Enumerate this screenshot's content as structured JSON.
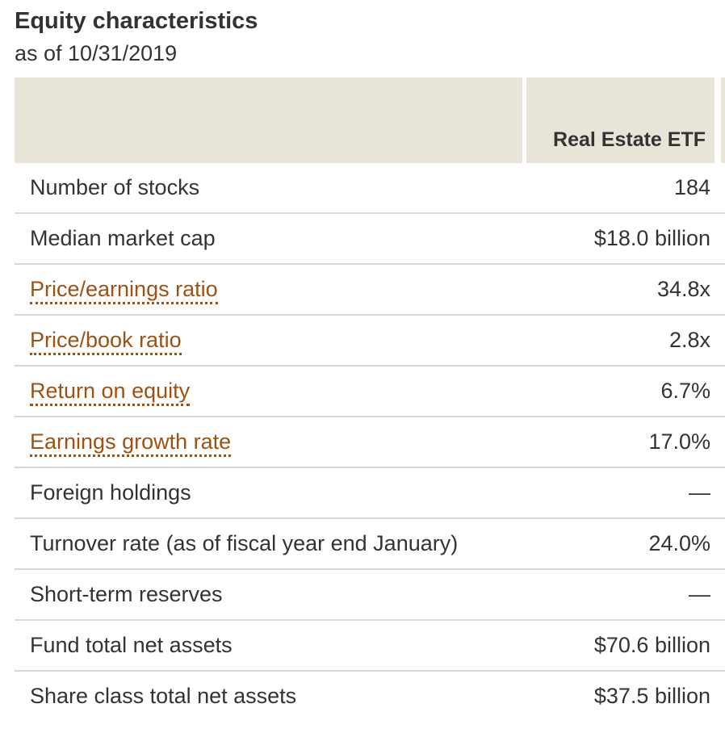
{
  "section": {
    "title": "Equity characteristics",
    "as_of_date": "as of 10/31/2019"
  },
  "table": {
    "column_header": "Real Estate ETF",
    "rows": [
      {
        "label": "Number of stocks",
        "value": "184",
        "is_link": false
      },
      {
        "label": "Median market cap",
        "value": "$18.0 billion",
        "is_link": false
      },
      {
        "label": "Price/earnings ratio",
        "value": "34.8x",
        "is_link": true
      },
      {
        "label": "Price/book ratio",
        "value": "2.8x",
        "is_link": true
      },
      {
        "label": "Return on equity",
        "value": "6.7%",
        "is_link": true
      },
      {
        "label": "Earnings growth rate",
        "value": "17.0%",
        "is_link": true
      },
      {
        "label": "Foreign holdings",
        "value": "—",
        "is_link": false
      },
      {
        "label": "Turnover rate (as of fiscal year end January)",
        "value": "24.0%",
        "is_link": false
      },
      {
        "label": "Short-term reserves",
        "value": "—",
        "is_link": false
      },
      {
        "label": "Fund total net assets",
        "value": "$70.6 billion",
        "is_link": false
      },
      {
        "label": "Share class total net assets",
        "value": "$37.5 billion",
        "is_link": false
      }
    ]
  },
  "colors": {
    "text": "#333333",
    "link_accent": "#9e5110",
    "header_background": "#e8e4d8",
    "row_divider": "#d9d9d9"
  }
}
